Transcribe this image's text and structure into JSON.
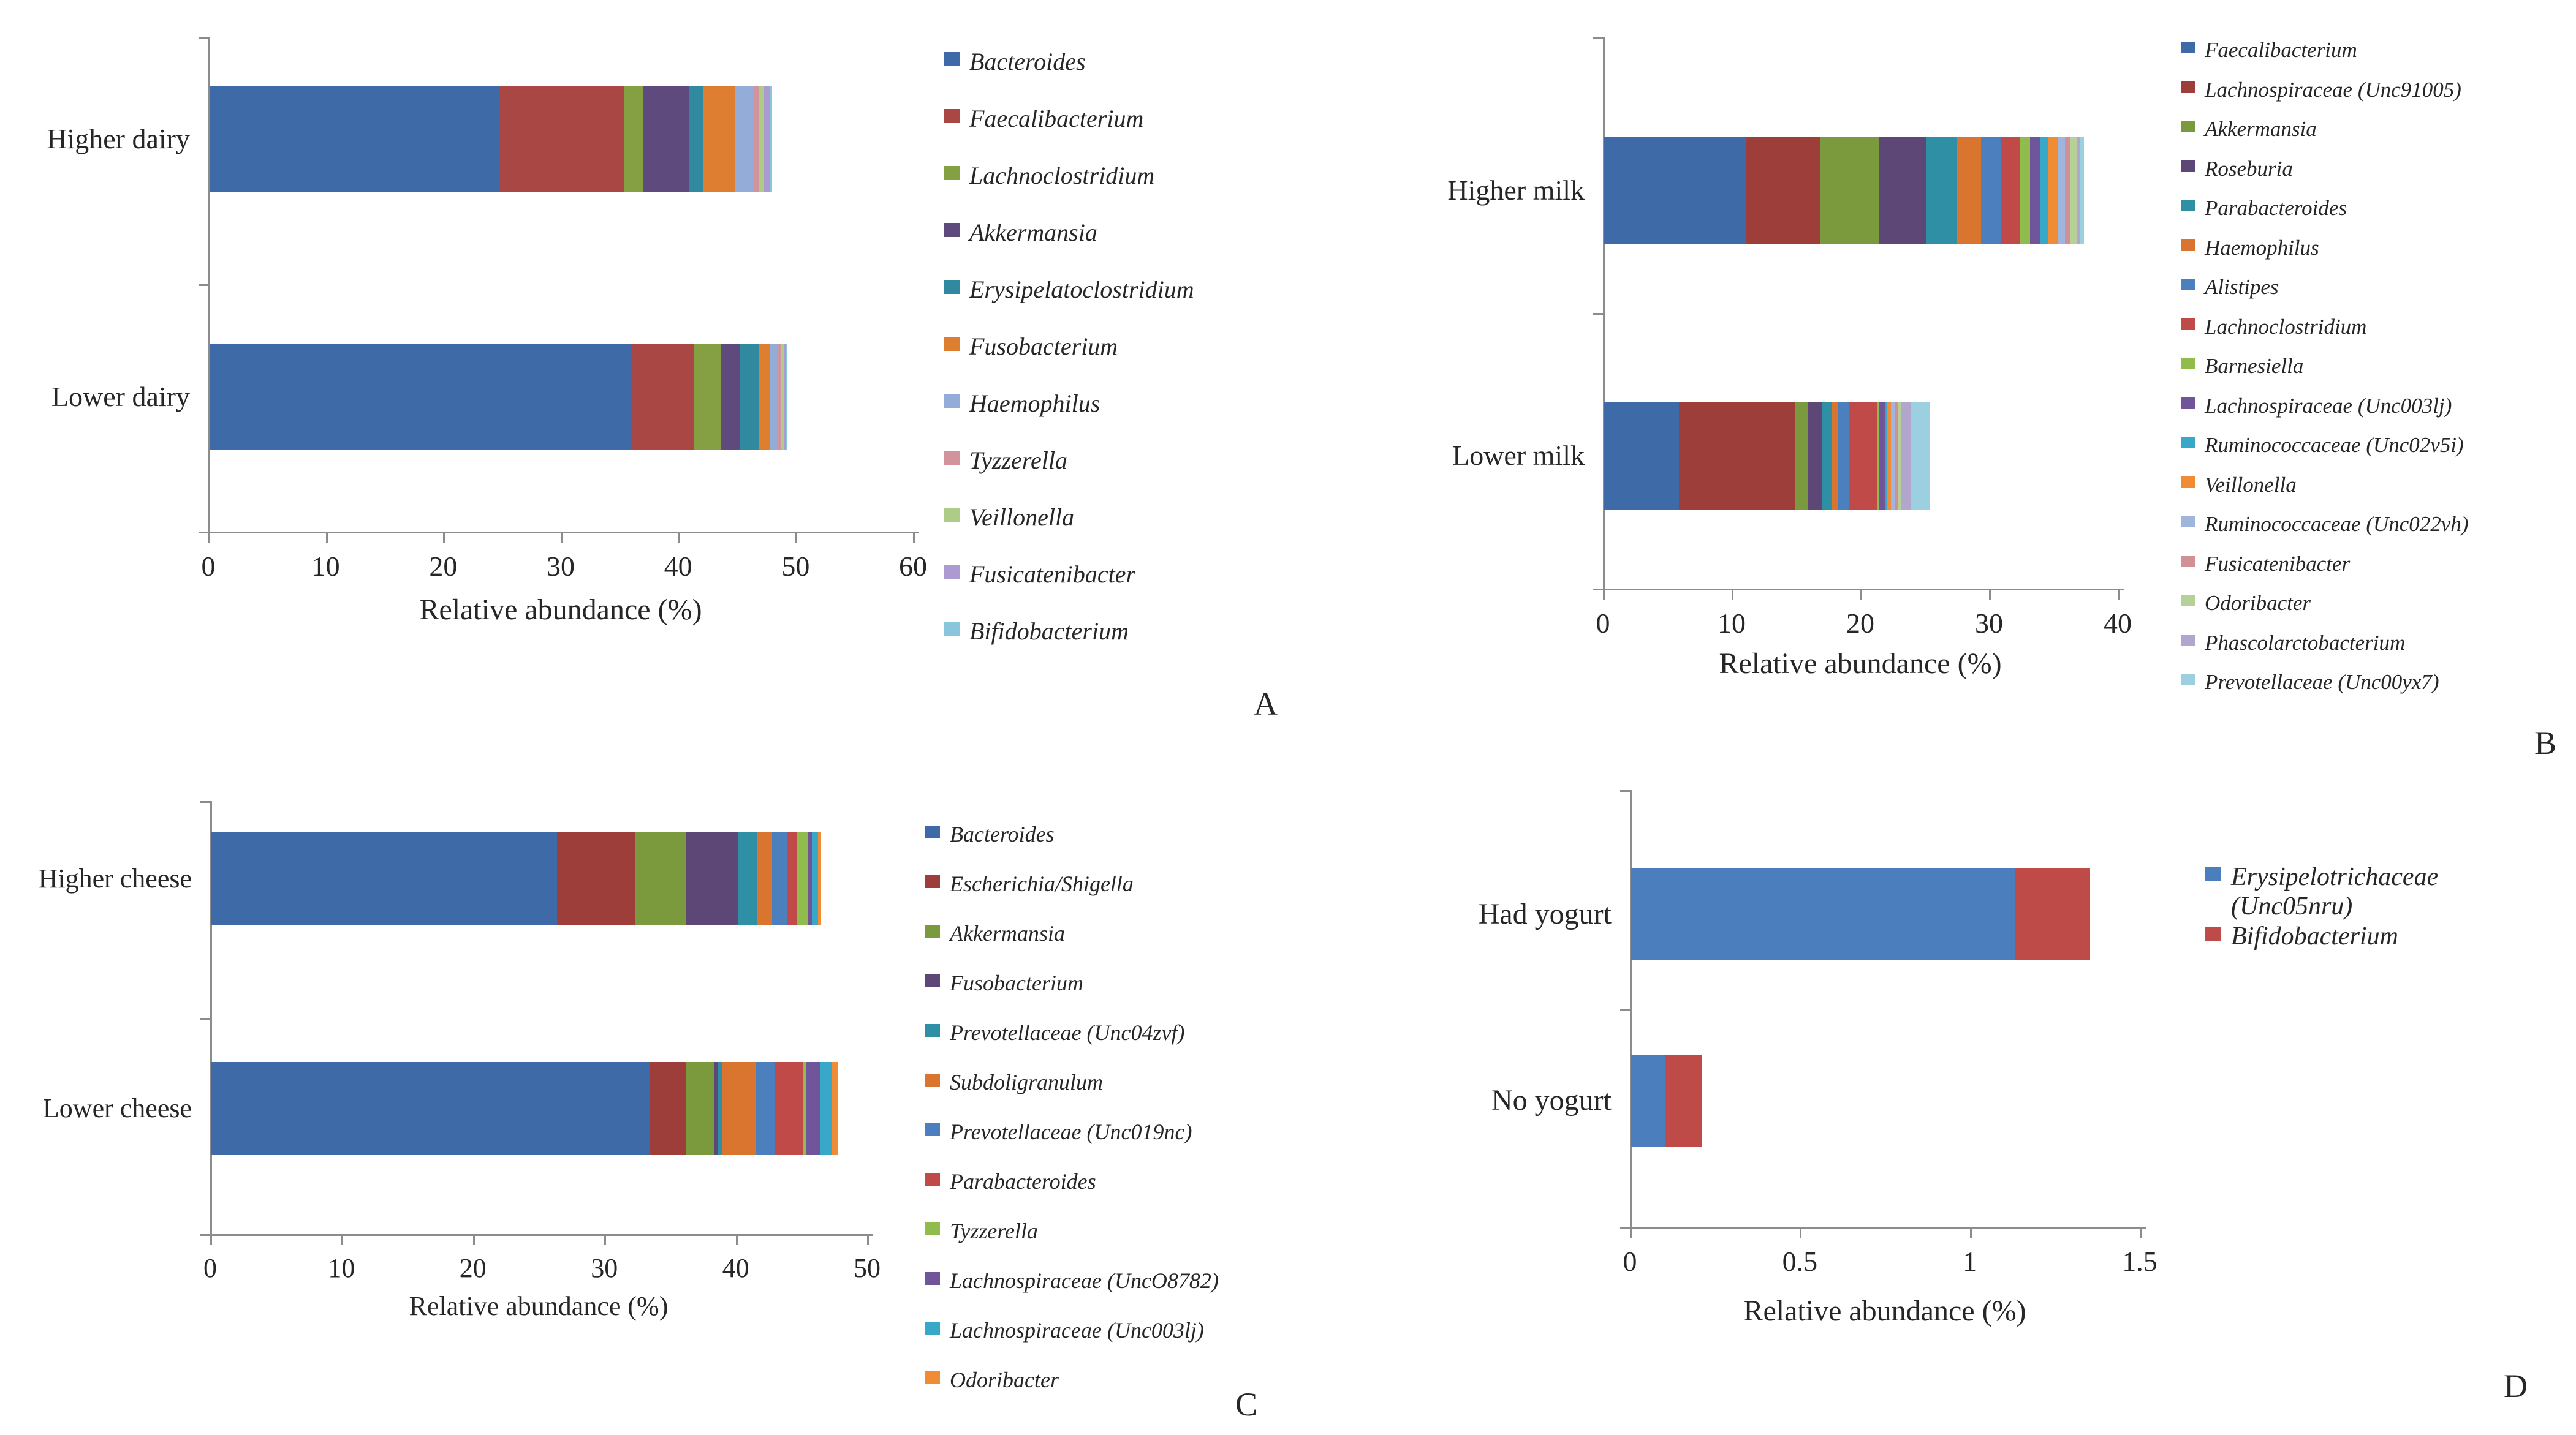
{
  "figure": {
    "background": "#ffffff",
    "text_color": "#262626",
    "axis_color": "#8c8c8c",
    "axis_title": "Relative abundance (%)"
  },
  "chart_data": [
    {
      "type": "bar",
      "orientation": "horizontal-stacked",
      "panel_letter": "A",
      "xlabel": "Relative abundance (%)",
      "xlim": [
        0,
        60
      ],
      "xticks": [
        "0",
        "10",
        "20",
        "30",
        "40",
        "50",
        "60"
      ],
      "grid": false,
      "legend_position": "right",
      "categories": [
        "Higher dairy",
        "Lower dairy"
      ],
      "series": [
        {
          "name": "Bacteroides",
          "color": "#3E6BA8",
          "values": [
            24.6,
            35.9
          ]
        },
        {
          "name": "Faecalibacterium",
          "color": "#A94744",
          "values": [
            10.7,
            5.3
          ]
        },
        {
          "name": "Lachnoclostridium",
          "color": "#85A042",
          "values": [
            1.6,
            2.3
          ]
        },
        {
          "name": "Akkermansia",
          "color": "#5F4A7E",
          "values": [
            3.9,
            1.7
          ]
        },
        {
          "name": "Erysipelatoclostridium",
          "color": "#31899F",
          "values": [
            1.2,
            1.6
          ]
        },
        {
          "name": "Fusobacterium",
          "color": "#DD7E30",
          "values": [
            2.7,
            0.9
          ]
        },
        {
          "name": "Haemophilus",
          "color": "#93ACD8",
          "values": [
            1.7,
            0.6
          ]
        },
        {
          "name": "Tyzzerella",
          "color": "#D2939B",
          "values": [
            0.4,
            0.4
          ]
        },
        {
          "name": "Veillonella",
          "color": "#AFCB89",
          "values": [
            0.4,
            0.2
          ]
        },
        {
          "name": "Fusicatenibacter",
          "color": "#AC9BD0",
          "values": [
            0.5,
            0.15
          ]
        },
        {
          "name": "Bifidobacterium",
          "color": "#8AC6DB",
          "values": [
            0.2,
            0.15
          ]
        }
      ]
    },
    {
      "type": "bar",
      "orientation": "horizontal-stacked",
      "panel_letter": "B",
      "xlabel": "Relative abundance (%)",
      "xlim": [
        0,
        40
      ],
      "xticks": [
        "0",
        "10",
        "20",
        "30",
        "40"
      ],
      "grid": false,
      "legend_position": "right",
      "categories": [
        "Higher milk",
        "Lower milk"
      ],
      "series": [
        {
          "name": "Faecalibacterium",
          "color": "#3E6BA8",
          "values": [
            11.0,
            5.8
          ]
        },
        {
          "name": "Lachnospiraceae (Unc91005)",
          "color": "#9E3E3B",
          "values": [
            5.8,
            9.0
          ]
        },
        {
          "name": "Akkermansia",
          "color": "#7A9A3D",
          "values": [
            4.6,
            1.0
          ]
        },
        {
          "name": "Roseburia",
          "color": "#5C4776",
          "values": [
            3.6,
            1.1
          ]
        },
        {
          "name": "Parabacteroides",
          "color": "#2E8FA5",
          "values": [
            2.4,
            0.8
          ]
        },
        {
          "name": "Haemophilus",
          "color": "#D9752E",
          "values": [
            1.9,
            0.5
          ]
        },
        {
          "name": "Alistipes",
          "color": "#4C7FBD",
          "values": [
            1.5,
            0.8
          ]
        },
        {
          "name": "Lachnoclostridium",
          "color": "#C04A48",
          "values": [
            1.5,
            2.2
          ]
        },
        {
          "name": "Barnesiella",
          "color": "#8FBC4C",
          "values": [
            0.8,
            0.2
          ]
        },
        {
          "name": "Lachnospiraceae (Unc003lj)",
          "color": "#70559B",
          "values": [
            0.8,
            0.4
          ]
        },
        {
          "name": "Ruminococcaceae (Unc02v5i)",
          "color": "#38A8C8",
          "values": [
            0.6,
            0.2
          ]
        },
        {
          "name": "Veillonella",
          "color": "#F08C35",
          "values": [
            0.8,
            0.3
          ]
        },
        {
          "name": "Ruminococcaceae (Unc022vh)",
          "color": "#A0B5DC",
          "values": [
            0.5,
            0.3
          ]
        },
        {
          "name": "Fusicatenibacter",
          "color": "#D18F96",
          "values": [
            0.4,
            0.2
          ]
        },
        {
          "name": "Odoribacter",
          "color": "#B5D197",
          "values": [
            0.5,
            0.3
          ]
        },
        {
          "name": "Phascolarctobacterium",
          "color": "#B3A6CE",
          "values": [
            0.3,
            0.7
          ]
        },
        {
          "name": "Prevotellaceae (Unc00yx7)",
          "color": "#9CCFE0",
          "values": [
            0.3,
            1.5
          ]
        }
      ]
    },
    {
      "type": "bar",
      "orientation": "horizontal-stacked",
      "panel_letter": "C",
      "xlabel": "Relative abundance (%)",
      "xlim": [
        0,
        50
      ],
      "xticks": [
        "0",
        "10",
        "20",
        "30",
        "40",
        "50"
      ],
      "grid": false,
      "legend_position": "right",
      "categories": [
        "Higher cheese",
        "Lower cheese"
      ],
      "series": [
        {
          "name": "Bacteroides",
          "color": "#3E6BA8",
          "values": [
            26.3,
            33.4
          ]
        },
        {
          "name": "Escherichia/Shigella",
          "color": "#9E3E3B",
          "values": [
            6.0,
            2.7
          ]
        },
        {
          "name": "Akkermansia",
          "color": "#7A9A3D",
          "values": [
            3.8,
            2.2
          ]
        },
        {
          "name": "Fusobacterium",
          "color": "#5C4776",
          "values": [
            4.0,
            0.25
          ]
        },
        {
          "name": "Prevotellaceae (Unc04zvf)",
          "color": "#2E8FA5",
          "values": [
            1.4,
            0.35
          ]
        },
        {
          "name": "Subdoligranulum",
          "color": "#D9752E",
          "values": [
            1.2,
            2.5
          ]
        },
        {
          "name": "Prevotellaceae (Unc019nc)",
          "color": "#4C7FBD",
          "values": [
            1.1,
            1.5
          ]
        },
        {
          "name": "Parabacteroides",
          "color": "#C04A48",
          "values": [
            0.8,
            2.1
          ]
        },
        {
          "name": "Tyzzerella",
          "color": "#8FBC4C",
          "values": [
            0.8,
            0.3
          ]
        },
        {
          "name": "Lachnospiraceae (UncO8782)",
          "color": "#70559B",
          "values": [
            0.3,
            1.0
          ]
        },
        {
          "name": "Lachnospiraceae (Unc003lj)",
          "color": "#38A8C8",
          "values": [
            0.5,
            0.9
          ]
        },
        {
          "name": "Odoribacter",
          "color": "#F08C35",
          "values": [
            0.2,
            0.5
          ]
        }
      ]
    },
    {
      "type": "bar",
      "orientation": "horizontal-stacked",
      "panel_letter": "D",
      "xlabel": "Relative abundance (%)",
      "xlim": [
        0,
        1.5
      ],
      "xticks": [
        "0",
        "0.5",
        "1",
        "1.5"
      ],
      "grid": false,
      "legend_position": "right",
      "categories": [
        "Had yogurt",
        "No yogurt"
      ],
      "series": [
        {
          "name": "Erysipelotrichaceae (Unc05nru)",
          "color": "#4A7EBD",
          "values": [
            1.13,
            0.1
          ]
        },
        {
          "name": "Bifidobacterium",
          "color": "#BE4B48",
          "values": [
            0.22,
            0.11
          ]
        }
      ]
    }
  ]
}
